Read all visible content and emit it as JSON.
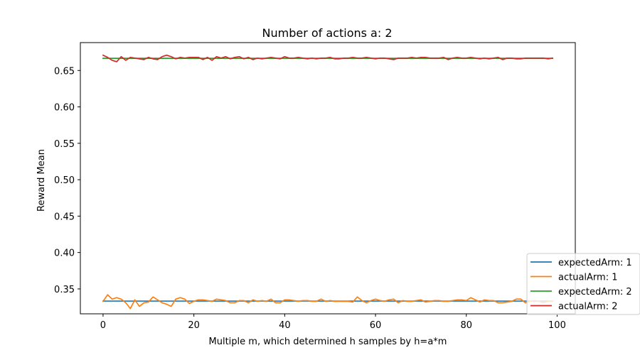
{
  "chart_data": {
    "type": "line",
    "title": "Number of actions a: 2",
    "xlabel": "Multiple m, which determined h samples by h=a*m",
    "ylabel": "Reward Mean",
    "xlim": [
      -5,
      104
    ],
    "ylim": [
      0.3158,
      0.6883
    ],
    "xticks": [
      0,
      20,
      40,
      60,
      80,
      100
    ],
    "yticks": [
      0.35,
      0.4,
      0.45,
      0.5,
      0.55,
      0.6,
      0.65
    ],
    "xtick_labels": [
      "0",
      "20",
      "40",
      "60",
      "80",
      "100"
    ],
    "ytick_labels": [
      "0.35",
      "0.40",
      "0.45",
      "0.50",
      "0.55",
      "0.60",
      "0.65"
    ],
    "grid": false,
    "legend_position": "lower-right",
    "series": [
      {
        "name": "expectedArm: 1",
        "color": "#1f77b4",
        "x_start": 0,
        "x_step": 1,
        "values": [
          0.3333,
          0.3333,
          0.3333,
          0.3333,
          0.3333,
          0.3333,
          0.3333,
          0.3333,
          0.3333,
          0.3333,
          0.3333,
          0.3333,
          0.3333,
          0.3333,
          0.3333,
          0.3333,
          0.3333,
          0.3333,
          0.3333,
          0.3333,
          0.3333,
          0.3333,
          0.3333,
          0.3333,
          0.3333,
          0.3333,
          0.3333,
          0.3333,
          0.3333,
          0.3333,
          0.3333,
          0.3333,
          0.3333,
          0.3333,
          0.3333,
          0.3333,
          0.3333,
          0.3333,
          0.3333,
          0.3333,
          0.3333,
          0.3333,
          0.3333,
          0.3333,
          0.3333,
          0.3333,
          0.3333,
          0.3333,
          0.3333,
          0.3333,
          0.3333,
          0.3333,
          0.3333,
          0.3333,
          0.3333,
          0.3333,
          0.3333,
          0.3333,
          0.3333,
          0.3333,
          0.3333,
          0.3333,
          0.3333,
          0.3333,
          0.3333,
          0.3333,
          0.3333,
          0.3333,
          0.3333,
          0.3333,
          0.3333,
          0.3333,
          0.3333,
          0.3333,
          0.3333,
          0.3333,
          0.3333,
          0.3333,
          0.3333,
          0.3333,
          0.3333,
          0.3333,
          0.3333,
          0.3333,
          0.3333,
          0.3333,
          0.3333,
          0.3333,
          0.3333,
          0.3333,
          0.3333,
          0.3333,
          0.3333,
          0.3333,
          0.3333,
          0.3333,
          0.3333,
          0.3333,
          0.3333,
          0.3333
        ]
      },
      {
        "name": "actualArm: 1",
        "color": "#ff7f0e",
        "x_start": 0,
        "x_step": 1,
        "values": [
          0.333,
          0.342,
          0.336,
          0.338,
          0.336,
          0.331,
          0.323,
          0.335,
          0.326,
          0.331,
          0.332,
          0.339,
          0.335,
          0.331,
          0.329,
          0.326,
          0.336,
          0.338,
          0.336,
          0.33,
          0.333,
          0.335,
          0.335,
          0.334,
          0.333,
          0.336,
          0.335,
          0.334,
          0.331,
          0.331,
          0.334,
          0.334,
          0.331,
          0.335,
          0.333,
          0.334,
          0.333,
          0.336,
          0.331,
          0.331,
          0.335,
          0.335,
          0.334,
          0.333,
          0.334,
          0.334,
          0.333,
          0.333,
          0.336,
          0.333,
          0.334,
          0.333,
          0.333,
          0.333,
          0.333,
          0.332,
          0.339,
          0.334,
          0.331,
          0.334,
          0.336,
          0.334,
          0.333,
          0.335,
          0.336,
          0.331,
          0.334,
          0.333,
          0.333,
          0.334,
          0.335,
          0.332,
          0.333,
          0.334,
          0.334,
          0.333,
          0.333,
          0.334,
          0.335,
          0.335,
          0.334,
          0.338,
          0.335,
          0.332,
          0.335,
          0.334,
          0.334,
          0.331,
          0.331,
          0.332,
          0.333,
          0.336,
          0.336,
          0.331,
          0.333,
          0.334,
          0.333,
          0.331,
          0.333,
          0.333
        ]
      },
      {
        "name": "expectedArm: 2",
        "color": "#2ca02c",
        "x_start": 0,
        "x_step": 1,
        "values": [
          0.6667,
          0.6667,
          0.6667,
          0.6667,
          0.6667,
          0.6667,
          0.6667,
          0.6667,
          0.6667,
          0.6667,
          0.6667,
          0.6667,
          0.6667,
          0.6667,
          0.6667,
          0.6667,
          0.6667,
          0.6667,
          0.6667,
          0.6667,
          0.6667,
          0.6667,
          0.6667,
          0.6667,
          0.6667,
          0.6667,
          0.6667,
          0.6667,
          0.6667,
          0.6667,
          0.6667,
          0.6667,
          0.6667,
          0.6667,
          0.6667,
          0.6667,
          0.6667,
          0.6667,
          0.6667,
          0.6667,
          0.6667,
          0.6667,
          0.6667,
          0.6667,
          0.6667,
          0.6667,
          0.6667,
          0.6667,
          0.6667,
          0.6667,
          0.6667,
          0.6667,
          0.6667,
          0.6667,
          0.6667,
          0.6667,
          0.6667,
          0.6667,
          0.6667,
          0.6667,
          0.6667,
          0.6667,
          0.6667,
          0.6667,
          0.6667,
          0.6667,
          0.6667,
          0.6667,
          0.6667,
          0.6667,
          0.6667,
          0.6667,
          0.6667,
          0.6667,
          0.6667,
          0.6667,
          0.6667,
          0.6667,
          0.6667,
          0.6667,
          0.6667,
          0.6667,
          0.6667,
          0.6667,
          0.6667,
          0.6667,
          0.6667,
          0.6667,
          0.6667,
          0.6667,
          0.6667,
          0.6667,
          0.6667,
          0.6667,
          0.6667,
          0.6667,
          0.6667,
          0.6667,
          0.6667,
          0.6667
        ]
      },
      {
        "name": "actualArm: 2",
        "color": "#d62728",
        "x_start": 0,
        "x_step": 1,
        "values": [
          0.671,
          0.668,
          0.664,
          0.662,
          0.669,
          0.664,
          0.668,
          0.667,
          0.666,
          0.665,
          0.668,
          0.666,
          0.665,
          0.669,
          0.671,
          0.669,
          0.666,
          0.668,
          0.667,
          0.668,
          0.668,
          0.668,
          0.665,
          0.668,
          0.664,
          0.669,
          0.667,
          0.669,
          0.666,
          0.668,
          0.669,
          0.666,
          0.668,
          0.665,
          0.667,
          0.666,
          0.667,
          0.668,
          0.667,
          0.666,
          0.669,
          0.667,
          0.667,
          0.668,
          0.667,
          0.666,
          0.667,
          0.666,
          0.667,
          0.667,
          0.668,
          0.666,
          0.666,
          0.667,
          0.667,
          0.668,
          0.667,
          0.667,
          0.668,
          0.667,
          0.666,
          0.667,
          0.667,
          0.666,
          0.665,
          0.667,
          0.667,
          0.667,
          0.668,
          0.667,
          0.668,
          0.668,
          0.667,
          0.667,
          0.667,
          0.668,
          0.665,
          0.667,
          0.668,
          0.667,
          0.667,
          0.668,
          0.667,
          0.666,
          0.667,
          0.666,
          0.667,
          0.668,
          0.665,
          0.667,
          0.667,
          0.666,
          0.666,
          0.667,
          0.667,
          0.667,
          0.667,
          0.667,
          0.666,
          0.667
        ]
      }
    ]
  }
}
